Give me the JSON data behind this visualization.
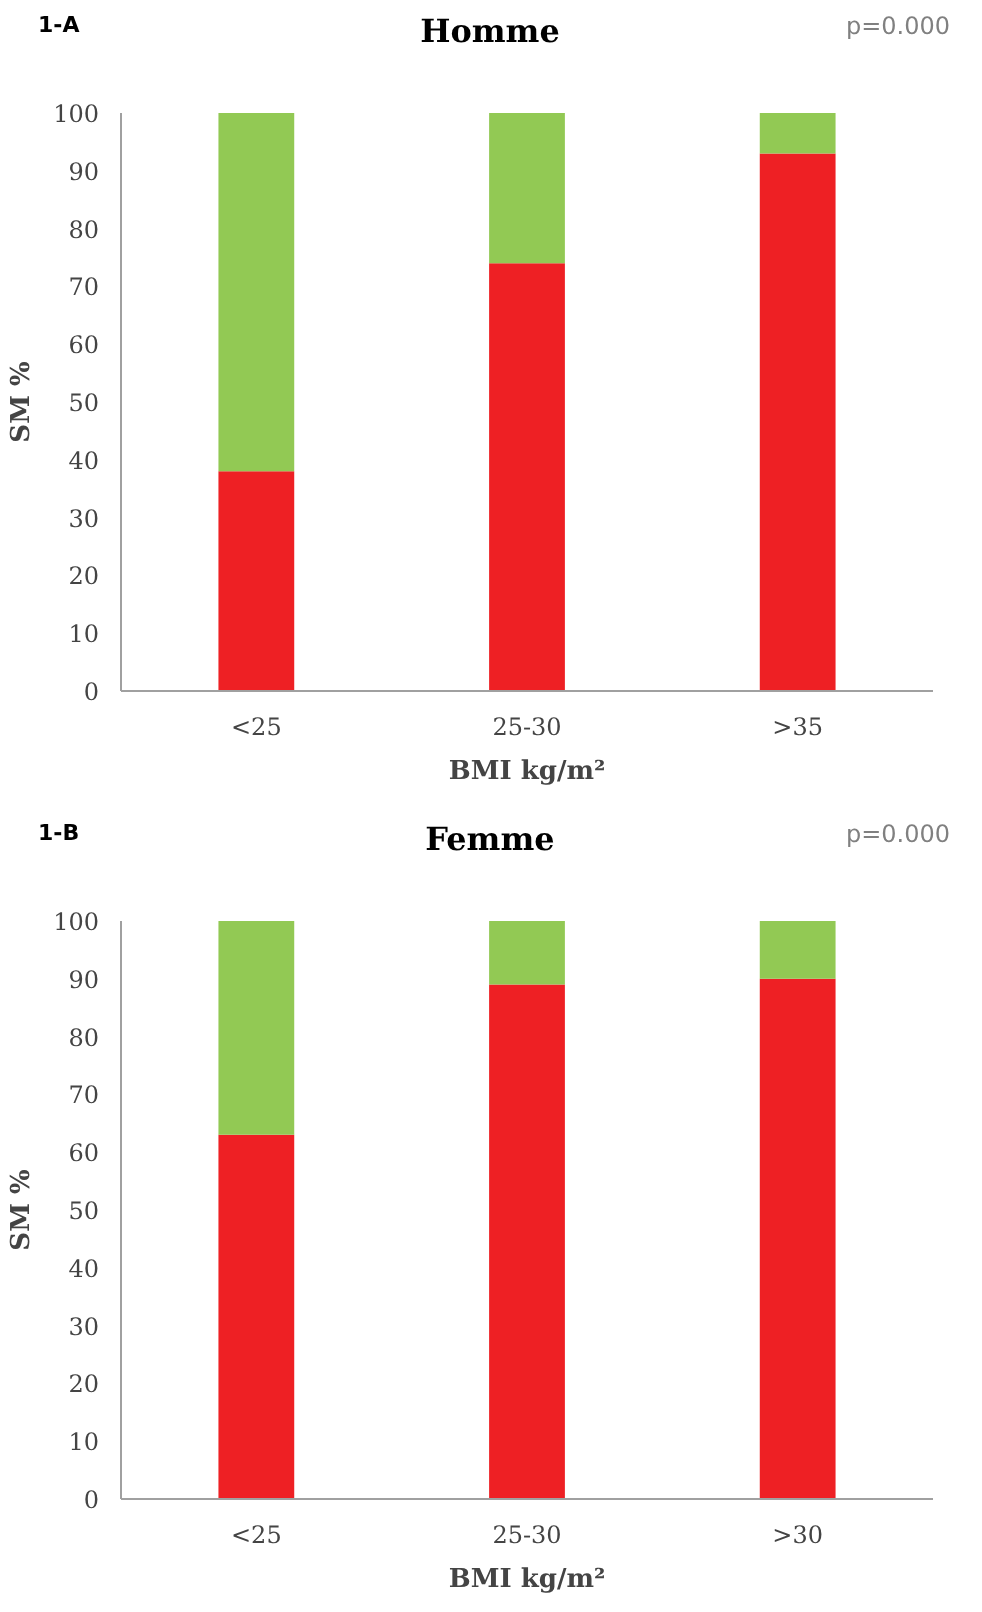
{
  "chart_data": [
    {
      "type": "bar",
      "title": "Homme",
      "xlabel": "BMI kg/m²",
      "ylabel": "SM %",
      "categories": [
        "<25",
        "25-30",
        ">35"
      ],
      "stacked": true,
      "ylim": [
        0,
        100
      ],
      "yticks": [
        0,
        10,
        20,
        30,
        40,
        50,
        60,
        70,
        80,
        90,
        100
      ],
      "annotations": [
        "1-A",
        "p=0.000"
      ],
      "series": [
        {
          "color": "#ee2024",
          "values": [
            38,
            74,
            93
          ]
        },
        {
          "color": "#92c954",
          "values": [
            62,
            26,
            7
          ]
        }
      ]
    },
    {
      "type": "bar",
      "title": "Femme",
      "xlabel": "BMI kg/m²",
      "ylabel": "SM %",
      "categories": [
        "<25",
        "25-30",
        ">30"
      ],
      "stacked": true,
      "ylim": [
        0,
        100
      ],
      "yticks": [
        0,
        10,
        20,
        30,
        40,
        50,
        60,
        70,
        80,
        90,
        100
      ],
      "annotations": [
        "1-B",
        "p=0.000"
      ],
      "series": [
        {
          "color": "#ee2024",
          "values": [
            63,
            89,
            90
          ]
        },
        {
          "color": "#92c954",
          "values": [
            37,
            11,
            10
          ]
        }
      ]
    }
  ]
}
